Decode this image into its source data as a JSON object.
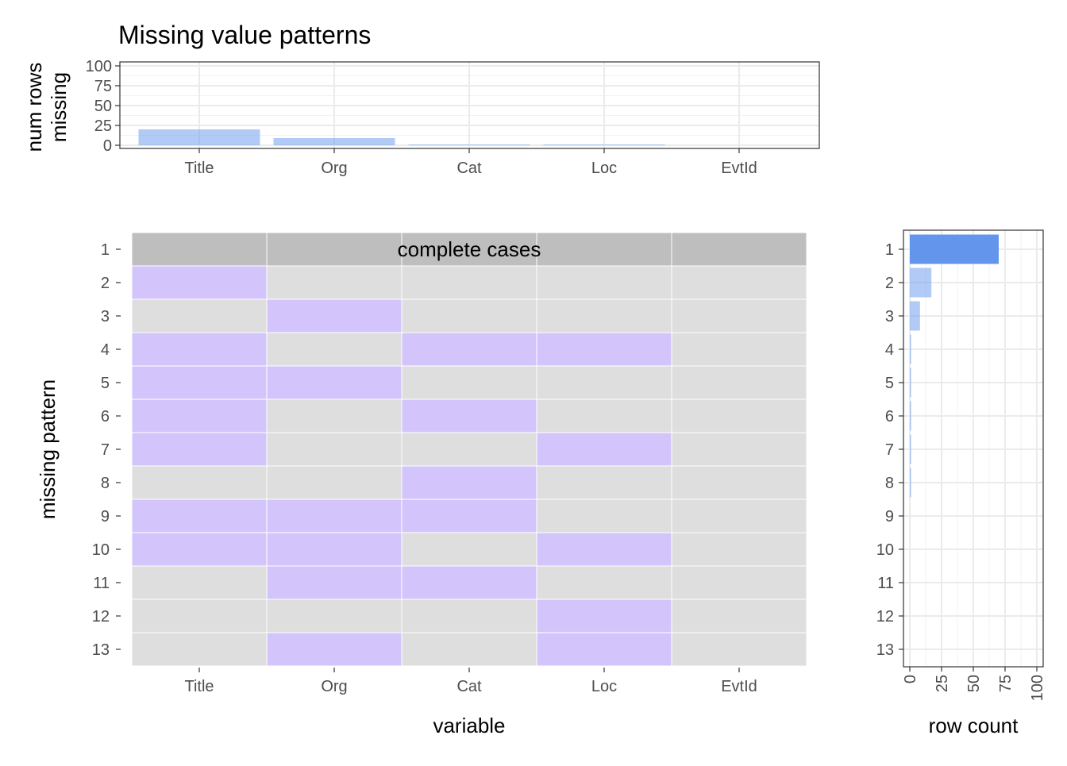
{
  "title": "Missing value patterns",
  "variables": [
    "Title",
    "Org",
    "Cat",
    "Loc",
    "EvtId"
  ],
  "chart_data": [
    {
      "type": "bar",
      "name": "num-rows-missing",
      "categories": [
        "Title",
        "Org",
        "Cat",
        "Loc",
        "EvtId"
      ],
      "values": [
        20,
        9,
        1,
        1,
        0
      ],
      "ylabel": "num rows\nmissing",
      "ylim": [
        0,
        100
      ],
      "yticks": [
        0,
        25,
        50,
        75,
        100
      ],
      "grid": true,
      "color": "#6495ed"
    },
    {
      "type": "heatmap",
      "name": "missing-pattern-matrix",
      "xlabel": "variable",
      "ylabel": "missing pattern",
      "x": [
        "Title",
        "Org",
        "Cat",
        "Loc",
        "EvtId"
      ],
      "y": [
        "1",
        "2",
        "3",
        "4",
        "5",
        "6",
        "7",
        "8",
        "9",
        "10",
        "11",
        "12",
        "13"
      ],
      "annotation": "complete cases",
      "missing": [
        [
          0,
          0,
          0,
          0,
          0
        ],
        [
          1,
          0,
          0,
          0,
          0
        ],
        [
          0,
          1,
          0,
          0,
          0
        ],
        [
          1,
          0,
          1,
          1,
          0
        ],
        [
          1,
          1,
          0,
          0,
          0
        ],
        [
          1,
          0,
          1,
          0,
          0
        ],
        [
          1,
          0,
          0,
          1,
          0
        ],
        [
          0,
          0,
          1,
          0,
          0
        ],
        [
          1,
          1,
          1,
          0,
          0
        ],
        [
          1,
          1,
          0,
          1,
          0
        ],
        [
          0,
          1,
          1,
          0,
          0
        ],
        [
          0,
          0,
          0,
          1,
          0
        ],
        [
          0,
          1,
          0,
          1,
          0
        ]
      ],
      "colors": {
        "missing": "#d4c4fc",
        "observed": "#dedede",
        "complete": "#bebebe"
      }
    },
    {
      "type": "bar",
      "name": "row-count",
      "orientation": "horizontal",
      "categories": [
        "1",
        "2",
        "3",
        "4",
        "5",
        "6",
        "7",
        "8",
        "9",
        "10",
        "11",
        "12",
        "13"
      ],
      "values": [
        70,
        17,
        8,
        1,
        1,
        1,
        1,
        1,
        0,
        0,
        0,
        0,
        0
      ],
      "xlabel": "row count",
      "xlim": [
        0,
        100
      ],
      "xticks": [
        0,
        25,
        50,
        75,
        100
      ],
      "grid": true,
      "color": "#6495ed"
    }
  ]
}
